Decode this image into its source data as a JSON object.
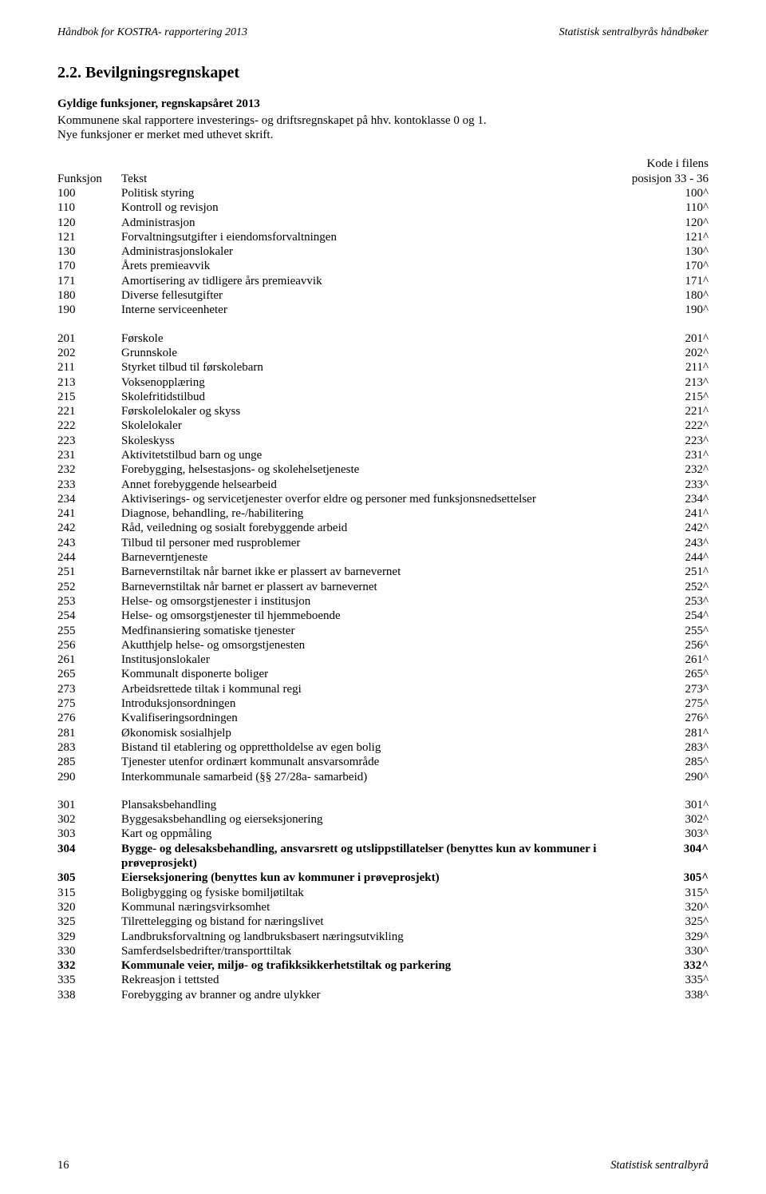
{
  "header": {
    "left": "Håndbok for KOSTRA- rapportering 2013",
    "right": "Statistisk sentralbyrås håndbøker"
  },
  "section_number_title": "2.2. Bevilgningsregnskapet",
  "block_title": "Gyldige funksjoner, regnskapsåret 2013",
  "intro_line1": "Kommunene skal rapportere investerings- og driftsregnskapet på hhv. kontoklasse 0 og 1.",
  "intro_line2": "Nye funksjoner er merket med uthevet skrift.",
  "kode_header_top": "Kode i filens",
  "table_head": {
    "c1": "Funksjon",
    "c2": "Tekst",
    "c3": "posisjon 33 - 36"
  },
  "groups": [
    [
      {
        "code": "100",
        "text": "Politisk styring",
        "pos": "100^"
      },
      {
        "code": "110",
        "text": "Kontroll og revisjon",
        "pos": "110^"
      },
      {
        "code": "120",
        "text": "Administrasjon",
        "pos": "120^"
      },
      {
        "code": "121",
        "text": "Forvaltningsutgifter i eiendomsforvaltningen",
        "pos": "121^"
      },
      {
        "code": "130",
        "text": "Administrasjonslokaler",
        "pos": "130^"
      },
      {
        "code": "170",
        "text": "Årets premieavvik",
        "pos": "170^"
      },
      {
        "code": "171",
        "text": "Amortisering av tidligere års premieavvik",
        "pos": "171^"
      },
      {
        "code": "180",
        "text": "Diverse fellesutgifter",
        "pos": "180^"
      },
      {
        "code": "190",
        "text": "Interne serviceenheter",
        "pos": "190^"
      }
    ],
    [
      {
        "code": "201",
        "text": "Førskole",
        "pos": "201^"
      },
      {
        "code": "202",
        "text": "Grunnskole",
        "pos": "202^"
      },
      {
        "code": "211",
        "text": "Styrket tilbud til førskolebarn",
        "pos": "211^"
      },
      {
        "code": "213",
        "text": "Voksenopplæring",
        "pos": "213^"
      },
      {
        "code": "215",
        "text": "Skolefritidstilbud",
        "pos": "215^"
      },
      {
        "code": "221",
        "text": "Førskolelokaler og skyss",
        "pos": "221^"
      },
      {
        "code": "222",
        "text": "Skolelokaler",
        "pos": "222^"
      },
      {
        "code": "223",
        "text": "Skoleskyss",
        "pos": "223^"
      },
      {
        "code": "231",
        "text": "Aktivitetstilbud barn og unge",
        "pos": "231^"
      },
      {
        "code": "232",
        "text": "Forebygging, helsestasjons- og skolehelsetjeneste",
        "pos": "232^"
      },
      {
        "code": "233",
        "text": "Annet forebyggende helsearbeid",
        "pos": "233^"
      },
      {
        "code": "234",
        "text": "Aktiviserings- og servicetjenester overfor eldre og personer med funksjonsnedsettelser",
        "pos": "234^"
      },
      {
        "code": "241",
        "text": "Diagnose, behandling, re-/habilitering",
        "pos": "241^"
      },
      {
        "code": "242",
        "text": "Råd, veiledning og sosialt forebyggende arbeid",
        "pos": "242^"
      },
      {
        "code": "243",
        "text": "Tilbud til personer med rusproblemer",
        "pos": "243^"
      },
      {
        "code": "244",
        "text": "Barneverntjeneste",
        "pos": "244^"
      },
      {
        "code": "251",
        "text": "Barnevernstiltak når barnet ikke er plassert av barnevernet",
        "pos": "251^"
      },
      {
        "code": "252",
        "text": "Barnevernstiltak når barnet er plassert av barnevernet",
        "pos": "252^"
      },
      {
        "code": "253",
        "text": "Helse- og omsorgstjenester i institusjon",
        "pos": "253^"
      },
      {
        "code": "254",
        "text": "Helse- og omsorgstjenester til hjemmeboende",
        "pos": "254^"
      },
      {
        "code": "255",
        "text": "Medfinansiering somatiske tjenester",
        "pos": "255^"
      },
      {
        "code": "256",
        "text": "Akutthjelp helse- og omsorgstjenesten",
        "pos": "256^"
      },
      {
        "code": "261",
        "text": "Institusjonslokaler",
        "pos": "261^"
      },
      {
        "code": "265",
        "text": "Kommunalt disponerte boliger",
        "pos": "265^"
      },
      {
        "code": "273",
        "text": "Arbeidsrettede tiltak i kommunal regi",
        "pos": "273^"
      },
      {
        "code": "275",
        "text": "Introduksjonsordningen",
        "pos": "275^"
      },
      {
        "code": "276",
        "text": "Kvalifiseringsordningen",
        "pos": "276^"
      },
      {
        "code": "281",
        "text": "Økonomisk sosialhjelp",
        "pos": "281^"
      },
      {
        "code": "283",
        "text": "Bistand til etablering og opprettholdelse av egen bolig",
        "pos": "283^"
      },
      {
        "code": "285",
        "text": "Tjenester utenfor ordinært kommunalt ansvarsområde",
        "pos": "285^"
      },
      {
        "code": "290",
        "text": "Interkommunale samarbeid (§§ 27/28a- samarbeid)",
        "pos": "290^"
      }
    ],
    [
      {
        "code": "301",
        "text": "Plansaksbehandling",
        "pos": "301^"
      },
      {
        "code": "302",
        "text": "Byggesaksbehandling og eierseksjonering",
        "pos": "302^"
      },
      {
        "code": "303",
        "text": "Kart og oppmåling",
        "pos": "303^"
      },
      {
        "code": "304",
        "text": "Bygge- og delesaksbehandling, ansvarsrett og utslippstillatelser (benyttes kun av kommuner i prøveprosjekt)",
        "pos": "304^",
        "bold": true
      },
      {
        "code": "305",
        "text": "Eierseksjonering (benyttes kun av kommuner i prøveprosjekt)",
        "pos": "305^",
        "bold": true
      },
      {
        "code": "315",
        "text": "Boligbygging og fysiske bomiljøtiltak",
        "pos": "315^"
      },
      {
        "code": "320",
        "text": "Kommunal næringsvirksomhet",
        "pos": "320^"
      },
      {
        "code": "325",
        "text": "Tilrettelegging og bistand for næringslivet",
        "pos": "325^"
      },
      {
        "code": "329",
        "text": "Landbruksforvaltning og landbruksbasert næringsutvikling",
        "pos": "329^"
      },
      {
        "code": "330",
        "text": "Samferdselsbedrifter/transporttiltak",
        "pos": "330^"
      },
      {
        "code": "332",
        "text": "Kommunale veier, miljø- og trafikksikkerhetstiltak og parkering",
        "pos": "332^",
        "bold": true
      },
      {
        "code": "335",
        "text": "Rekreasjon i tettsted",
        "pos": "335^"
      },
      {
        "code": "338",
        "text": "Forebygging av branner og andre ulykker",
        "pos": "338^"
      }
    ]
  ],
  "footer": {
    "page": "16",
    "right": "Statistisk sentralbyrå"
  }
}
